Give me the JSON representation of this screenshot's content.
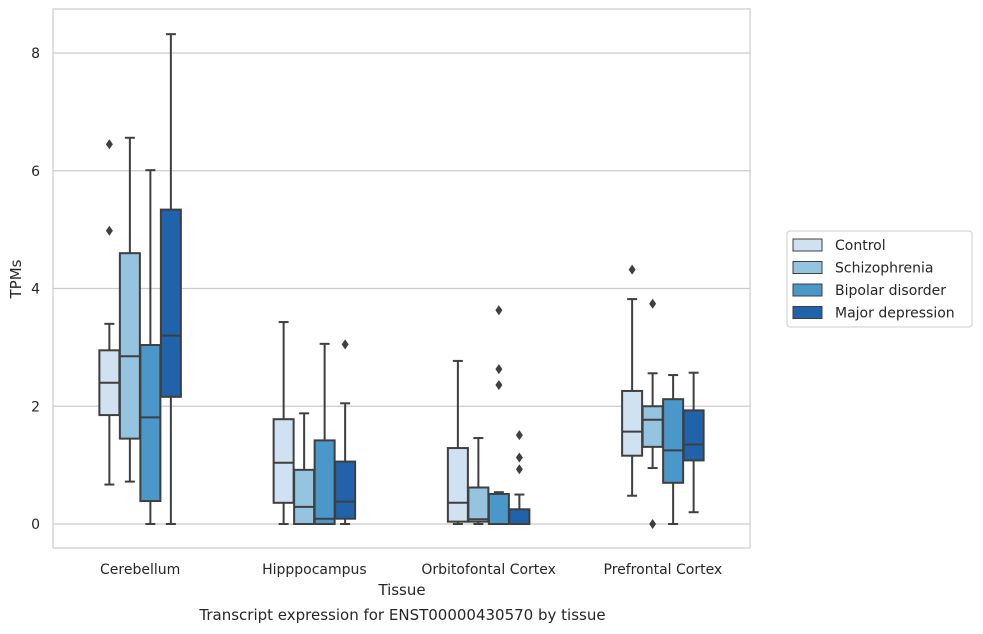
{
  "caption": "Transcript expression for ENST00000430570 by tissue",
  "chart_data": {
    "type": "box",
    "xlabel": "Tissue",
    "ylabel": "TPMs",
    "ylim": [
      -0.4,
      8.8
    ],
    "yticks": [
      0,
      2,
      4,
      6,
      8
    ],
    "grid": "horizontal",
    "legend_position": "right",
    "categories": [
      "Cerebellum",
      "Hipppocampus",
      "Orbitofontal Cortex",
      "Prefrontal Cortex"
    ],
    "series": [
      {
        "name": "Control",
        "color": "#d0e1f2",
        "boxes": [
          {
            "whislo": 0.67,
            "q1": 1.85,
            "med": 2.4,
            "q3": 2.95,
            "whishi": 3.4,
            "fliers": [
              4.98,
              6.45
            ]
          },
          {
            "whislo": 0.0,
            "q1": 0.36,
            "med": 1.04,
            "q3": 1.78,
            "whishi": 3.43,
            "fliers": []
          },
          {
            "whislo": 0.0,
            "q1": 0.04,
            "med": 0.36,
            "q3": 1.29,
            "whishi": 2.77,
            "fliers": []
          },
          {
            "whislo": 0.48,
            "q1": 1.16,
            "med": 1.57,
            "q3": 2.26,
            "whishi": 3.82,
            "fliers": [
              4.32
            ]
          }
        ]
      },
      {
        "name": "Schizophrenia",
        "color": "#94c4df",
        "boxes": [
          {
            "whislo": 0.72,
            "q1": 1.45,
            "med": 2.85,
            "q3": 4.6,
            "whishi": 6.56,
            "fliers": []
          },
          {
            "whislo": 0.0,
            "q1": 0.0,
            "med": 0.29,
            "q3": 0.92,
            "whishi": 1.88,
            "fliers": []
          },
          {
            "whislo": 0.0,
            "q1": 0.04,
            "med": 0.08,
            "q3": 0.62,
            "whishi": 1.46,
            "fliers": []
          },
          {
            "whislo": 0.95,
            "q1": 1.31,
            "med": 1.77,
            "q3": 2.0,
            "whishi": 2.56,
            "fliers": [
              0.0,
              3.74
            ]
          }
        ]
      },
      {
        "name": "Bipolar disorder",
        "color": "#4a98c9",
        "boxes": [
          {
            "whislo": 0.0,
            "q1": 0.39,
            "med": 1.81,
            "q3": 3.04,
            "whishi": 6.01,
            "fliers": []
          },
          {
            "whislo": 0.0,
            "q1": 0.0,
            "med": 0.09,
            "q3": 1.42,
            "whishi": 3.06,
            "fliers": []
          },
          {
            "whislo": 0.0,
            "q1": 0.0,
            "med": 0.0,
            "q3": 0.51,
            "whishi": 0.54,
            "fliers": [
              2.36,
              2.63,
              3.63
            ]
          },
          {
            "whislo": 0.0,
            "q1": 0.7,
            "med": 1.25,
            "q3": 2.12,
            "whishi": 2.53,
            "fliers": []
          }
        ]
      },
      {
        "name": "Major depression",
        "color": "#2163aa",
        "boxes": [
          {
            "whislo": 0.0,
            "q1": 2.16,
            "med": 3.2,
            "q3": 5.34,
            "whishi": 8.32,
            "fliers": []
          },
          {
            "whislo": 0.0,
            "q1": 0.09,
            "med": 0.38,
            "q3": 1.06,
            "whishi": 2.05,
            "fliers": [
              3.05
            ]
          },
          {
            "whislo": 0.0,
            "q1": 0.0,
            "med": 0.0,
            "q3": 0.25,
            "whishi": 0.5,
            "fliers": [
              0.93,
              1.13,
              1.51
            ]
          },
          {
            "whislo": 0.2,
            "q1": 1.08,
            "med": 1.35,
            "q3": 1.93,
            "whishi": 2.57,
            "fliers": []
          }
        ]
      }
    ]
  }
}
